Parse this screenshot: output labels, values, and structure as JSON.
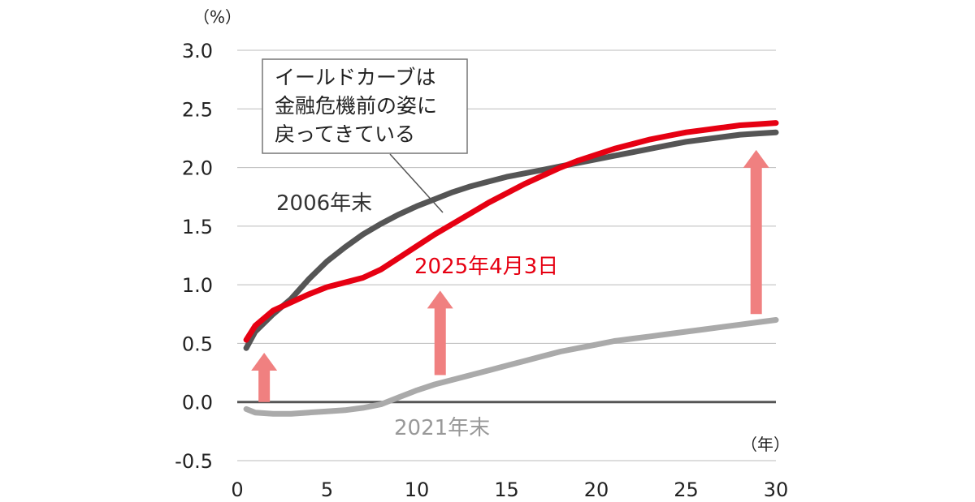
{
  "chart_data": {
    "type": "line",
    "y_unit": "（%）",
    "x_unit": "（年）",
    "xlim": [
      0,
      30
    ],
    "ylim": [
      -0.5,
      3.0
    ],
    "x_ticks": [
      "0",
      "5",
      "10",
      "15",
      "20",
      "25",
      "30"
    ],
    "y_ticks": [
      "-0.5",
      "0.0",
      "0.5",
      "1.0",
      "1.5",
      "2.0",
      "2.5",
      "3.0"
    ],
    "grid": true,
    "series": [
      {
        "name": "2006年末",
        "color": "#555555",
        "points": [
          [
            0.5,
            0.46
          ],
          [
            1,
            0.6
          ],
          [
            2,
            0.75
          ],
          [
            3,
            0.88
          ],
          [
            4,
            1.05
          ],
          [
            5,
            1.2
          ],
          [
            6,
            1.32
          ],
          [
            7,
            1.43
          ],
          [
            8,
            1.52
          ],
          [
            9,
            1.6
          ],
          [
            10,
            1.67
          ],
          [
            11,
            1.73
          ],
          [
            12,
            1.79
          ],
          [
            13,
            1.84
          ],
          [
            14,
            1.88
          ],
          [
            15,
            1.92
          ],
          [
            16,
            1.95
          ],
          [
            17,
            1.98
          ],
          [
            18,
            2.01
          ],
          [
            19,
            2.04
          ],
          [
            20,
            2.07
          ],
          [
            21,
            2.1
          ],
          [
            22,
            2.13
          ],
          [
            23,
            2.16
          ],
          [
            24,
            2.19
          ],
          [
            25,
            2.22
          ],
          [
            26,
            2.24
          ],
          [
            27,
            2.26
          ],
          [
            28,
            2.28
          ],
          [
            29,
            2.29
          ],
          [
            30,
            2.3
          ]
        ]
      },
      {
        "name": "2025年4月3日",
        "color": "#e60012",
        "points": [
          [
            0.5,
            0.53
          ],
          [
            1,
            0.65
          ],
          [
            2,
            0.78
          ],
          [
            3,
            0.85
          ],
          [
            4,
            0.92
          ],
          [
            5,
            0.98
          ],
          [
            6,
            1.02
          ],
          [
            7,
            1.06
          ],
          [
            8,
            1.13
          ],
          [
            9,
            1.23
          ],
          [
            10,
            1.33
          ],
          [
            11,
            1.43
          ],
          [
            12,
            1.52
          ],
          [
            13,
            1.61
          ],
          [
            14,
            1.7
          ],
          [
            15,
            1.78
          ],
          [
            16,
            1.86
          ],
          [
            17,
            1.93
          ],
          [
            18,
            2.0
          ],
          [
            19,
            2.06
          ],
          [
            20,
            2.11
          ],
          [
            21,
            2.16
          ],
          [
            22,
            2.2
          ],
          [
            23,
            2.24
          ],
          [
            24,
            2.27
          ],
          [
            25,
            2.3
          ],
          [
            26,
            2.32
          ],
          [
            27,
            2.34
          ],
          [
            28,
            2.36
          ],
          [
            29,
            2.37
          ],
          [
            30,
            2.38
          ]
        ]
      },
      {
        "name": "2021年末",
        "color": "#aaaaaa",
        "points": [
          [
            0.5,
            -0.06
          ],
          [
            1,
            -0.09
          ],
          [
            2,
            -0.1
          ],
          [
            3,
            -0.1
          ],
          [
            4,
            -0.09
          ],
          [
            5,
            -0.08
          ],
          [
            6,
            -0.07
          ],
          [
            7,
            -0.05
          ],
          [
            8,
            -0.02
          ],
          [
            9,
            0.04
          ],
          [
            10,
            0.1
          ],
          [
            11,
            0.15
          ],
          [
            12,
            0.19
          ],
          [
            13,
            0.23
          ],
          [
            14,
            0.27
          ],
          [
            15,
            0.31
          ],
          [
            16,
            0.35
          ],
          [
            17,
            0.39
          ],
          [
            18,
            0.43
          ],
          [
            19,
            0.46
          ],
          [
            20,
            0.49
          ],
          [
            21,
            0.52
          ],
          [
            22,
            0.54
          ],
          [
            23,
            0.56
          ],
          [
            24,
            0.58
          ],
          [
            25,
            0.6
          ],
          [
            26,
            0.62
          ],
          [
            27,
            0.64
          ],
          [
            28,
            0.66
          ],
          [
            29,
            0.68
          ],
          [
            30,
            0.7
          ]
        ]
      }
    ],
    "arrows": [
      {
        "x": 1.5,
        "from": 0.0,
        "to": 0.42
      },
      {
        "x": 11.3,
        "from": 0.23,
        "to": 0.95
      },
      {
        "x": 28.9,
        "from": 0.75,
        "to": 2.15
      }
    ],
    "callout": {
      "lines": [
        "イールドカーブは",
        "金融危機前の姿に",
        "戻ってきている"
      ]
    }
  }
}
